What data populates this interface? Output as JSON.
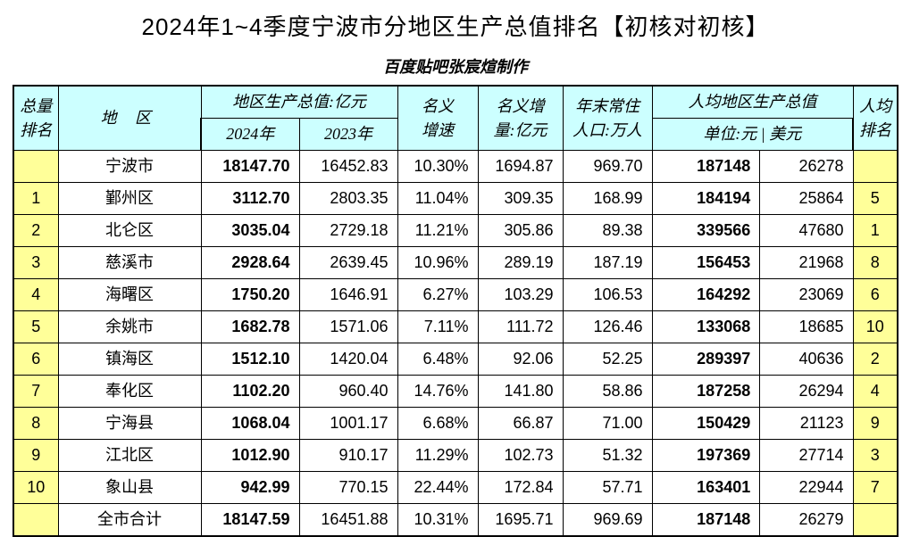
{
  "title": "2024年1~4季度宁波市分地区生产总值排名【初核对初核】",
  "subtitle": "百度贴吧张宸煊制作",
  "headers": {
    "rank": "总量\n排名",
    "region": "地  区",
    "gdp": "地区生产总值:亿元",
    "gdp24": "2024年",
    "gdp23": "2023年",
    "growth": "名义\n增速",
    "increment": "名义增\n量:亿元",
    "population": "年末常住\n人口:万人",
    "percap": "人均地区生产总值",
    "percap_unit": "单位:元 | 美元",
    "pcrank": "人均\n排名"
  },
  "rows": [
    {
      "rank": "",
      "region": "宁波市",
      "gdp24": "18147.70",
      "gdp23": "16452.83",
      "growth": "10.30%",
      "increment": "1694.87",
      "population": "969.70",
      "percap_cny": "187148",
      "percap_usd": "26278",
      "pcrank": ""
    },
    {
      "rank": "1",
      "region": "鄞州区",
      "gdp24": "3112.70",
      "gdp23": "2803.35",
      "growth": "11.04%",
      "increment": "309.35",
      "population": "168.99",
      "percap_cny": "184194",
      "percap_usd": "25864",
      "pcrank": "5"
    },
    {
      "rank": "2",
      "region": "北仑区",
      "gdp24": "3035.04",
      "gdp23": "2729.18",
      "growth": "11.21%",
      "increment": "305.86",
      "population": "89.38",
      "percap_cny": "339566",
      "percap_usd": "47680",
      "pcrank": "1"
    },
    {
      "rank": "3",
      "region": "慈溪市",
      "gdp24": "2928.64",
      "gdp23": "2639.45",
      "growth": "10.96%",
      "increment": "289.19",
      "population": "187.19",
      "percap_cny": "156453",
      "percap_usd": "21968",
      "pcrank": "8"
    },
    {
      "rank": "4",
      "region": "海曙区",
      "gdp24": "1750.20",
      "gdp23": "1646.91",
      "growth": "6.27%",
      "increment": "103.29",
      "population": "106.53",
      "percap_cny": "164292",
      "percap_usd": "23069",
      "pcrank": "6"
    },
    {
      "rank": "5",
      "region": "余姚市",
      "gdp24": "1682.78",
      "gdp23": "1571.06",
      "growth": "7.11%",
      "increment": "111.72",
      "population": "126.46",
      "percap_cny": "133068",
      "percap_usd": "18685",
      "pcrank": "10"
    },
    {
      "rank": "6",
      "region": "镇海区",
      "gdp24": "1512.10",
      "gdp23": "1420.04",
      "growth": "6.48%",
      "increment": "92.06",
      "population": "52.25",
      "percap_cny": "289397",
      "percap_usd": "40636",
      "pcrank": "2"
    },
    {
      "rank": "7",
      "region": "奉化区",
      "gdp24": "1102.20",
      "gdp23": "960.40",
      "growth": "14.76%",
      "increment": "141.80",
      "population": "58.86",
      "percap_cny": "187258",
      "percap_usd": "26294",
      "pcrank": "4"
    },
    {
      "rank": "8",
      "region": "宁海县",
      "gdp24": "1068.04",
      "gdp23": "1001.17",
      "growth": "6.68%",
      "increment": "66.87",
      "population": "71.00",
      "percap_cny": "150429",
      "percap_usd": "21123",
      "pcrank": "9"
    },
    {
      "rank": "9",
      "region": "江北区",
      "gdp24": "1012.90",
      "gdp23": "910.17",
      "growth": "11.29%",
      "increment": "102.73",
      "population": "51.32",
      "percap_cny": "197369",
      "percap_usd": "27714",
      "pcrank": "3"
    },
    {
      "rank": "10",
      "region": "象山县",
      "gdp24": "942.99",
      "gdp23": "770.15",
      "growth": "22.44%",
      "increment": "172.84",
      "population": "57.71",
      "percap_cny": "163401",
      "percap_usd": "22944",
      "pcrank": "7"
    },
    {
      "rank": "",
      "region": "全市合计",
      "gdp24": "18147.59",
      "gdp23": "16451.88",
      "growth": "10.31%",
      "increment": "1695.71",
      "population": "969.69",
      "percap_cny": "187148",
      "percap_usd": "26279",
      "pcrank": ""
    }
  ],
  "styling": {
    "header_bg": "#ccffff",
    "rank_bg": "#ffff99",
    "border_color": "#000000",
    "bg_color": "#ffffff",
    "title_fontsize": 26,
    "subtitle_fontsize": 18,
    "body_fontsize": 18
  }
}
